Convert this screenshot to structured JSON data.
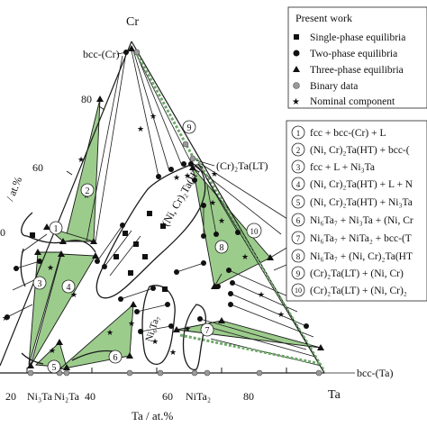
{
  "corners": {
    "top": "Cr",
    "right": "Ta",
    "bcc_cr": "bcc-(Cr)",
    "bcc_ta": "bcc-(Ta)"
  },
  "axes": {
    "bottom_label": "Ta / at.%",
    "left_label": "/ at.%",
    "bottom_ticks": [
      "20",
      "40",
      "60",
      "80"
    ],
    "left_ticks": [
      "80",
      "60",
      "0"
    ]
  },
  "phase_labels": {
    "cr2ta_lt": "(Cr)₂Ta(LT)",
    "ni_cr2ta_ht": "(Ni, Cr)₂Ta(HT)",
    "ni6ta7": "Ni₆Ta₇",
    "ni3ta": "Ni₃Ta",
    "ni2ta": "Ni₂Ta",
    "nita2": "NiTa₂"
  },
  "region_numbers": [
    "1",
    "2",
    "3",
    "4",
    "5",
    "6",
    "7",
    "8",
    "9",
    "10"
  ],
  "legend_present_work": {
    "title": "Present work",
    "items": [
      {
        "symbol": "square",
        "text": "Single-phase equilibria"
      },
      {
        "symbol": "circle",
        "text": "Two-phase equilibria"
      },
      {
        "symbol": "triangle",
        "text": "Three-phase equilibria"
      },
      {
        "symbol": "grey-circle",
        "text": "Binary data"
      },
      {
        "symbol": "star",
        "text": "Nominal component"
      }
    ]
  },
  "legend_regions": [
    {
      "num": "1",
      "text": "fcc + bcc-(Cr) + L"
    },
    {
      "num": "2",
      "text": "(Ni, Cr)₂Ta(HT) + bcc-("
    },
    {
      "num": "3",
      "text": "fcc + L + Ni₃Ta"
    },
    {
      "num": "4",
      "text": "(Ni, Cr)₂Ta(HT) + L + N"
    },
    {
      "num": "5",
      "text": "(Ni, Cr)₂Ta(HT) + Ni₃Ta"
    },
    {
      "num": "6",
      "text": "Ni₆Ta₇ + Ni₃Ta + (Ni, Cr"
    },
    {
      "num": "7",
      "text": "Ni₆Ta₇ + NiTa₂ + bcc-(T"
    },
    {
      "num": "8",
      "text": "Ni₆Ta₇ + (Ni, Cr)₂Ta(HT"
    },
    {
      "num": "9",
      "text": "(Cr)₂Ta(LT) + (Ni, Cr)"
    },
    {
      "num": "10",
      "text": "(Cr)₂Ta(LT) + (Ni, Cr)₂"
    }
  ],
  "colors": {
    "three_phase_fill": "#9ccc8c",
    "line": "#1a1a1a",
    "binary_marker": "#999999"
  }
}
